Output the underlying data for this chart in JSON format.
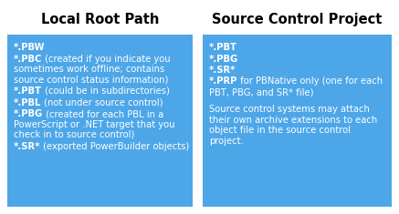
{
  "title_left": "Local Root Path",
  "title_right": "Source Control Project",
  "box_color": "#4DA6E8",
  "title_color": "#000000",
  "text_color": "#FFFFFF",
  "bg_color": "#FFFFFF",
  "title_fontsize": 10.5,
  "content_fontsize": 7.2,
  "fig_width": 4.37,
  "fig_height": 2.35,
  "dpi": 100,
  "left_entries": [
    {
      "bold": "*.PBW",
      "normal": ""
    },
    {
      "bold": "*.PBC",
      "normal": " (created if you indicate you\nsometimes work offline; contains\nsource control status information)"
    },
    {
      "bold": "*.PBT",
      "normal": " (could be in subdirectories)"
    },
    {
      "bold": "*.PBL",
      "normal": " (not under source control)"
    },
    {
      "bold": "*.PBG",
      "normal": " (created for each PBL in a\nPowerScript or .NET target that you\ncheck in to source control)"
    },
    {
      "bold": "*.SR*",
      "normal": " (exported PowerBuilder objects)"
    }
  ],
  "right_entries": [
    {
      "bold": "*.PBT",
      "normal": ""
    },
    {
      "bold": "*.PBG",
      "normal": ""
    },
    {
      "bold": "*.SR*",
      "normal": ""
    },
    {
      "bold": "*.PRP",
      "normal": " for PBNative only (one for each\nPBT, PBG, and SR* file)"
    },
    {
      "bold": "",
      "normal": ""
    },
    {
      "bold": "",
      "normal": "Source control systems may attach\ntheir own archive extensions to each\nobject file in the source control\nproject."
    }
  ]
}
